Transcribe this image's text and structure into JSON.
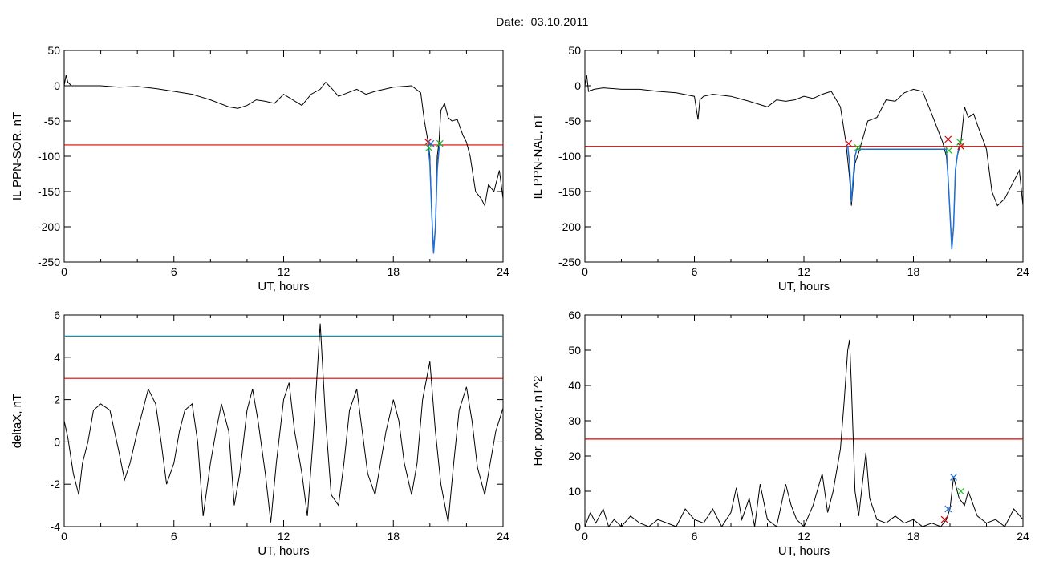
{
  "header": {
    "date_label": "Date:",
    "date_value": "03.10.2011"
  },
  "colors": {
    "line": "#000000",
    "threshold_red": "#dd0000",
    "threshold_teal": "#1a8fa0",
    "marker_green": "#22bb22",
    "marker_blue": "#1f6fd6",
    "fit_blue": "#1f6fd6"
  },
  "chart_data": [
    {
      "type": "line",
      "ylabel": "IL PPN-SOR, nT",
      "xlabel": "UT, hours",
      "xlim": [
        0,
        24
      ],
      "ylim": [
        -250,
        50
      ],
      "xticks": [
        0,
        6,
        12,
        18,
        24
      ],
      "yticks": [
        50,
        0,
        -50,
        -100,
        -150,
        -200,
        -250
      ],
      "hlines": [
        {
          "y": -84,
          "color": "red"
        }
      ],
      "series": [
        {
          "color": "black",
          "x": [
            0,
            0.1,
            0.2,
            0.4,
            1,
            2,
            3,
            4,
            5,
            6,
            7,
            8,
            9,
            9.5,
            10,
            10.5,
            11,
            11.5,
            12,
            12.5,
            13,
            13.5,
            14,
            14.3,
            14.6,
            15,
            15.5,
            16,
            16.5,
            17,
            18,
            19,
            19.5,
            19.7,
            19.9,
            20.0,
            20.1,
            20.2,
            20.3,
            20.4,
            20.5,
            20.6,
            20.8,
            21.0,
            21.2,
            21.5,
            21.8,
            22.0,
            22.2,
            22.5,
            22.8,
            23,
            23.2,
            23.5,
            23.8,
            24
          ],
          "y": [
            0,
            15,
            5,
            0,
            0,
            0,
            -2,
            -1,
            -4,
            -8,
            -12,
            -20,
            -30,
            -32,
            -28,
            -20,
            -22,
            -25,
            -12,
            -20,
            -28,
            -12,
            -5,
            5,
            -3,
            -15,
            -10,
            -5,
            -12,
            -8,
            -2,
            0,
            -10,
            -50,
            -80,
            -100,
            -180,
            -235,
            -200,
            -100,
            -80,
            -35,
            -25,
            -45,
            -50,
            -48,
            -70,
            -80,
            -100,
            -150,
            -160,
            -170,
            -140,
            -150,
            -120,
            -160
          ]
        }
      ],
      "fit": {
        "color": "blue",
        "x": [
          19.9,
          20.0,
          20.1,
          20.2,
          20.3,
          20.4,
          20.5,
          20.6
        ],
        "y": [
          -85,
          -110,
          -180,
          -238,
          -200,
          -120,
          -90,
          -80
        ]
      },
      "markers": [
        {
          "x": 19.9,
          "y": -80,
          "color": "red"
        },
        {
          "x": 19.95,
          "y": -88,
          "color": "green"
        },
        {
          "x": 20.05,
          "y": -82,
          "color": "blue"
        },
        {
          "x": 20.55,
          "y": -82,
          "color": "green"
        }
      ]
    },
    {
      "type": "line",
      "ylabel": "IL PPN-NAL, nT",
      "xlabel": "UT, hours",
      "xlim": [
        0,
        24
      ],
      "ylim": [
        -250,
        50
      ],
      "xticks": [
        0,
        6,
        12,
        18,
        24
      ],
      "yticks": [
        50,
        0,
        -50,
        -100,
        -150,
        -200,
        -250
      ],
      "hlines": [
        {
          "y": -86,
          "color": "red"
        }
      ],
      "series": [
        {
          "color": "black",
          "x": [
            0,
            0.1,
            0.2,
            0.5,
            1,
            2,
            3,
            4,
            5,
            6,
            6.2,
            6.3,
            6.5,
            7,
            8,
            9,
            10,
            10.5,
            11,
            11.5,
            12,
            12.5,
            13,
            13.5,
            14,
            14.3,
            14.5,
            14.6,
            14.8,
            15,
            15.5,
            16,
            16.5,
            17,
            17.5,
            18,
            18.5,
            19,
            19.3,
            19.6,
            19.8,
            19.9,
            20.0,
            20.1,
            20.2,
            20.3,
            20.4,
            20.6,
            20.8,
            21,
            21.3,
            21.5,
            22,
            22.3,
            22.6,
            23,
            23.4,
            23.8,
            24
          ],
          "y": [
            0,
            15,
            -8,
            -5,
            -3,
            -5,
            -5,
            -8,
            -10,
            -15,
            -48,
            -20,
            -15,
            -12,
            -15,
            -22,
            -30,
            -20,
            -22,
            -20,
            -15,
            -18,
            -12,
            -8,
            -30,
            -80,
            -130,
            -170,
            -110,
            -95,
            -50,
            -45,
            -20,
            -22,
            -10,
            -5,
            -8,
            -40,
            -60,
            -80,
            -100,
            -130,
            -180,
            -230,
            -200,
            -120,
            -100,
            -80,
            -30,
            -45,
            -40,
            -55,
            -90,
            -150,
            -170,
            -160,
            -140,
            -120,
            -170
          ]
        }
      ],
      "fit": {
        "color": "blue",
        "x": [
          14.4,
          14.5,
          14.6,
          14.7,
          14.8,
          14.9,
          19.8,
          19.9,
          20.0,
          20.1,
          20.2,
          20.3,
          20.4,
          20.5
        ],
        "y": [
          -85,
          -110,
          -165,
          -130,
          -100,
          -90,
          -90,
          -130,
          -180,
          -232,
          -200,
          -120,
          -100,
          -86
        ]
      },
      "markers": [
        {
          "x": 14.45,
          "y": -82,
          "color": "red"
        },
        {
          "x": 14.95,
          "y": -88,
          "color": "green"
        },
        {
          "x": 19.9,
          "y": -76,
          "color": "red"
        },
        {
          "x": 19.95,
          "y": -92,
          "color": "green"
        },
        {
          "x": 20.55,
          "y": -80,
          "color": "green"
        },
        {
          "x": 20.6,
          "y": -86,
          "color": "red"
        }
      ]
    },
    {
      "type": "line",
      "ylabel": "deltaX, nT",
      "xlabel": "UT, hours",
      "xlim": [
        0,
        24
      ],
      "ylim": [
        -4,
        6
      ],
      "xticks": [
        0,
        6,
        12,
        18,
        24
      ],
      "yticks": [
        6,
        4,
        2,
        0,
        -2,
        -4
      ],
      "hlines": [
        {
          "y": 5,
          "color": "teal"
        },
        {
          "y": 3,
          "color": "red"
        }
      ],
      "series": [
        {
          "color": "black",
          "x": [
            0,
            0.2,
            0.5,
            0.8,
            1,
            1.3,
            1.6,
            2,
            2.5,
            3,
            3.3,
            3.6,
            4,
            4.3,
            4.6,
            5,
            5.3,
            5.6,
            6,
            6.3,
            6.6,
            7,
            7.3,
            7.6,
            8,
            8.3,
            8.6,
            9,
            9.3,
            9.6,
            10,
            10.3,
            10.6,
            11,
            11.3,
            11.6,
            12,
            12.3,
            12.6,
            13,
            13.3,
            13.6,
            14,
            14.3,
            14.6,
            15,
            15.3,
            15.6,
            16,
            16.3,
            16.6,
            17,
            17.3,
            17.6,
            18,
            18.3,
            18.6,
            19,
            19.3,
            19.6,
            20,
            20.3,
            20.6,
            21,
            21.3,
            21.6,
            22,
            22.3,
            22.6,
            23,
            23.3,
            23.6,
            24
          ],
          "y": [
            1,
            0.2,
            -1.5,
            -2.5,
            -1,
            0,
            1.5,
            1.8,
            1.5,
            -0.5,
            -1.8,
            -1,
            0.5,
            1.5,
            2.5,
            1.8,
            0,
            -2,
            -1,
            0.5,
            1.5,
            1.8,
            0,
            -3.5,
            -1,
            0.5,
            1.8,
            0.5,
            -3,
            -1.5,
            1.5,
            2.5,
            1,
            -1.5,
            -3.8,
            -1,
            2,
            2.8,
            0.5,
            -1.5,
            -3.5,
            0,
            5.6,
            1,
            -2.5,
            -3,
            -1,
            1.5,
            2.5,
            0.5,
            -1.5,
            -2.5,
            -1,
            0.5,
            2,
            1,
            -1,
            -2.5,
            -1,
            2,
            3.8,
            0.5,
            -2,
            -3.8,
            -1,
            1.5,
            2.6,
            1,
            -1.2,
            -2.5,
            -1,
            0.5,
            1.6
          ]
        }
      ]
    },
    {
      "type": "line",
      "ylabel": "Hor. power, nT^2",
      "xlabel": "UT, hours",
      "xlim": [
        0,
        24
      ],
      "ylim": [
        0,
        60
      ],
      "xticks": [
        0,
        6,
        12,
        18,
        24
      ],
      "yticks": [
        60,
        50,
        40,
        30,
        20,
        10,
        0
      ],
      "hlines": [
        {
          "y": 24.8,
          "color": "red"
        }
      ],
      "series": [
        {
          "color": "black",
          "x": [
            0,
            0.3,
            0.6,
            1,
            1.3,
            1.6,
            2,
            2.5,
            3,
            3.5,
            4,
            4.5,
            5,
            5.5,
            6,
            6.5,
            7,
            7.5,
            8,
            8.3,
            8.6,
            9,
            9.3,
            9.6,
            10,
            10.5,
            11,
            11.3,
            11.6,
            12,
            12.5,
            13,
            13.3,
            13.6,
            14,
            14.2,
            14.4,
            14.5,
            14.6,
            14.8,
            15,
            15.2,
            15.4,
            15.6,
            16,
            16.5,
            17,
            17.5,
            18,
            18.5,
            19,
            19.5,
            19.8,
            20,
            20.2,
            20.5,
            20.8,
            21,
            21.5,
            22,
            22.5,
            23,
            23.5,
            24
          ],
          "y": [
            0,
            4,
            1,
            5,
            0,
            2,
            0,
            3,
            1,
            0,
            2,
            1,
            0,
            5,
            2,
            1,
            5,
            0,
            4,
            11,
            2,
            8,
            0,
            12,
            2,
            0,
            12,
            6,
            2,
            0,
            6,
            15,
            4,
            10,
            22,
            35,
            50,
            53,
            40,
            10,
            3,
            12,
            21,
            8,
            2,
            1,
            3,
            1,
            2,
            0,
            1,
            0,
            2,
            5,
            14,
            8,
            6,
            10,
            3,
            1,
            2,
            0,
            5,
            2
          ]
        }
      ],
      "markers": [
        {
          "x": 19.7,
          "y": 2,
          "color": "red"
        },
        {
          "x": 19.9,
          "y": 5,
          "color": "blue"
        },
        {
          "x": 20.2,
          "y": 14,
          "color": "blue"
        },
        {
          "x": 20.6,
          "y": 10,
          "color": "green"
        }
      ]
    }
  ]
}
